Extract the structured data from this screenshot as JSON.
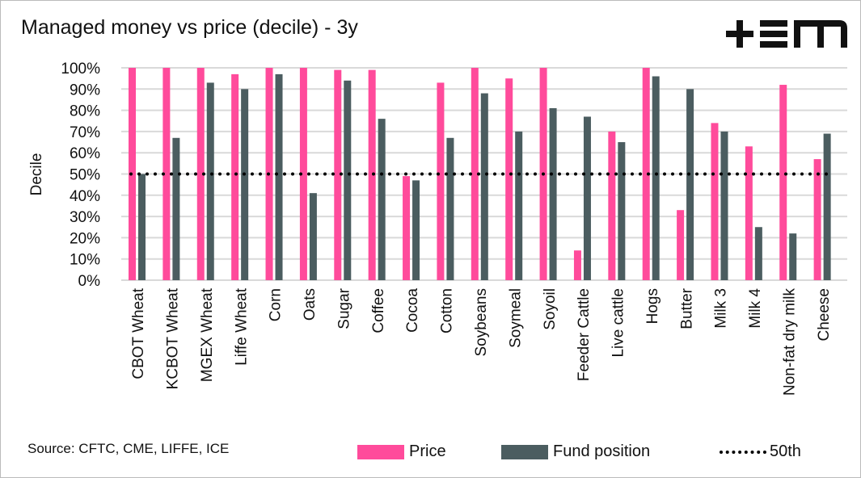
{
  "title": "Managed money vs price (decile) - 3y",
  "logo_text": "+EM",
  "source": "Source: CFTC, CME, LIFFE, ICE",
  "colors": {
    "price": "#ff4b9b",
    "fund": "#4b5d60",
    "ref": "#000000",
    "grid": "#d9d9d9"
  },
  "chart_data": {
    "type": "bar",
    "title": "Managed money vs price (decile) - 3y",
    "xlabel": "",
    "ylabel": "Decile",
    "ylim": [
      0,
      100
    ],
    "yticks": [
      "0%",
      "10%",
      "20%",
      "30%",
      "40%",
      "50%",
      "60%",
      "70%",
      "80%",
      "90%",
      "100%"
    ],
    "grid": true,
    "legend": "bottom",
    "categories": [
      "CBOT Wheat",
      "KCBOT Wheat",
      "MGEX Wheat",
      "Liffe Wheat",
      "Corn",
      "Oats",
      "Sugar",
      "Coffee",
      "Cocoa",
      "Cotton",
      "Soybeans",
      "Soymeal",
      "Soyoil",
      "Feeder Cattle",
      "Live cattle",
      "Hogs",
      "Butter",
      "Milk 3",
      "Milk 4",
      "Non-fat dry milk",
      "Cheese"
    ],
    "series": [
      {
        "name": "Price",
        "values": [
          100,
          100,
          100,
          97,
          100,
          100,
          99,
          99,
          49,
          93,
          100,
          95,
          100,
          14,
          70,
          100,
          33,
          74,
          63,
          92,
          57
        ]
      },
      {
        "name": "Fund position",
        "values": [
          50,
          67,
          93,
          90,
          97,
          41,
          94,
          76,
          47,
          67,
          88,
          70,
          81,
          77,
          65,
          96,
          90,
          70,
          25,
          22,
          69
        ]
      }
    ],
    "reference_line": {
      "name": "50th",
      "value": 50,
      "style": "dotted"
    }
  }
}
